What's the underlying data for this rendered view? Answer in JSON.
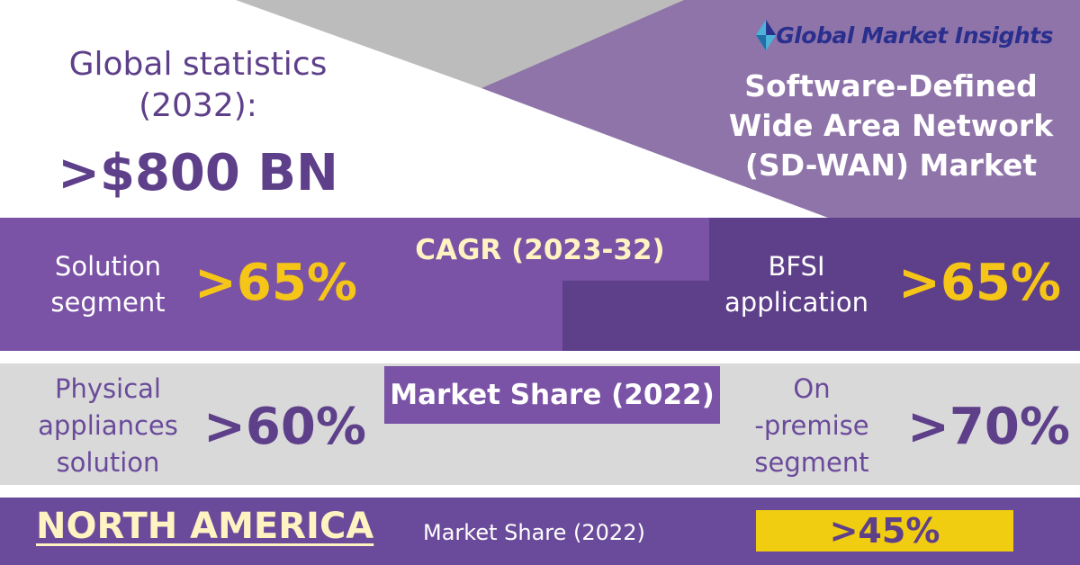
{
  "brand": {
    "logo_text": "Global Market Insights",
    "logo_icon": "diamond-logo-icon"
  },
  "headline": {
    "line1": "Global statistics",
    "line2": "(2032):",
    "value": ">$800 BN"
  },
  "report_title": {
    "line1": "Software-Defined",
    "line2": "Wide Area Network",
    "line3": "(SD-WAN) Market"
  },
  "cagr": {
    "heading": "CAGR (2023-32)",
    "left": {
      "label_line1": "Solution",
      "label_line2": "segment",
      "value": ">65%"
    },
    "right": {
      "label_line1": "BFSI",
      "label_line2": "application",
      "value": ">65%"
    }
  },
  "market_share": {
    "heading": "Market Share (2022)",
    "left": {
      "label_line1": "Physical",
      "label_line2": "appliances",
      "label_line3": "solution",
      "value": ">60%"
    },
    "right": {
      "label_line1": "On",
      "label_line2": "-premise",
      "label_line3": "segment",
      "value": ">70%"
    }
  },
  "region": {
    "name": "NORTH AMERICA",
    "label": "Market Share (2022)",
    "value": ">45%"
  },
  "colors": {
    "purple_dark": "#5e3f8a",
    "purple_mid": "#7a52a6",
    "purple_light": "#8f74a9",
    "gray": "#bfbfbf",
    "gray_light": "#d9d9d9",
    "yellow": "#f5c518",
    "cream": "#fff3c2"
  }
}
